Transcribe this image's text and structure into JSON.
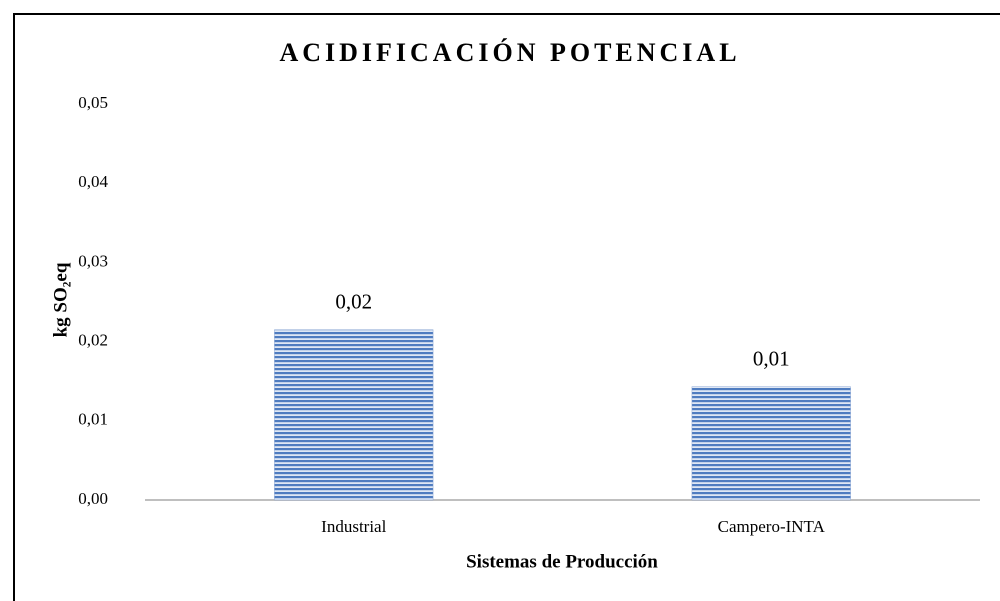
{
  "chart_data": {
    "type": "bar",
    "title": "ACIDIFICACIÓN POTENCIAL",
    "xlabel": "Sistemas de Producción",
    "ylabel": "kg SO₂eq",
    "categories": [
      "Industrial",
      "Campero-INTA"
    ],
    "values": [
      0.0215,
      0.0143
    ],
    "value_labels": [
      "0,02",
      "0,01"
    ],
    "color": "#4f7cc0",
    "ylim": [
      0,
      0.05
    ],
    "yticks": [
      {
        "value": 0,
        "label": "0,00"
      },
      {
        "value": 0.01,
        "label": "0,01"
      },
      {
        "value": 0.02,
        "label": "0,02"
      },
      {
        "value": 0.03,
        "label": "0,03"
      },
      {
        "value": 0.04,
        "label": "0,04"
      },
      {
        "value": 0.05,
        "label": "0,05"
      }
    ],
    "grid": false
  }
}
